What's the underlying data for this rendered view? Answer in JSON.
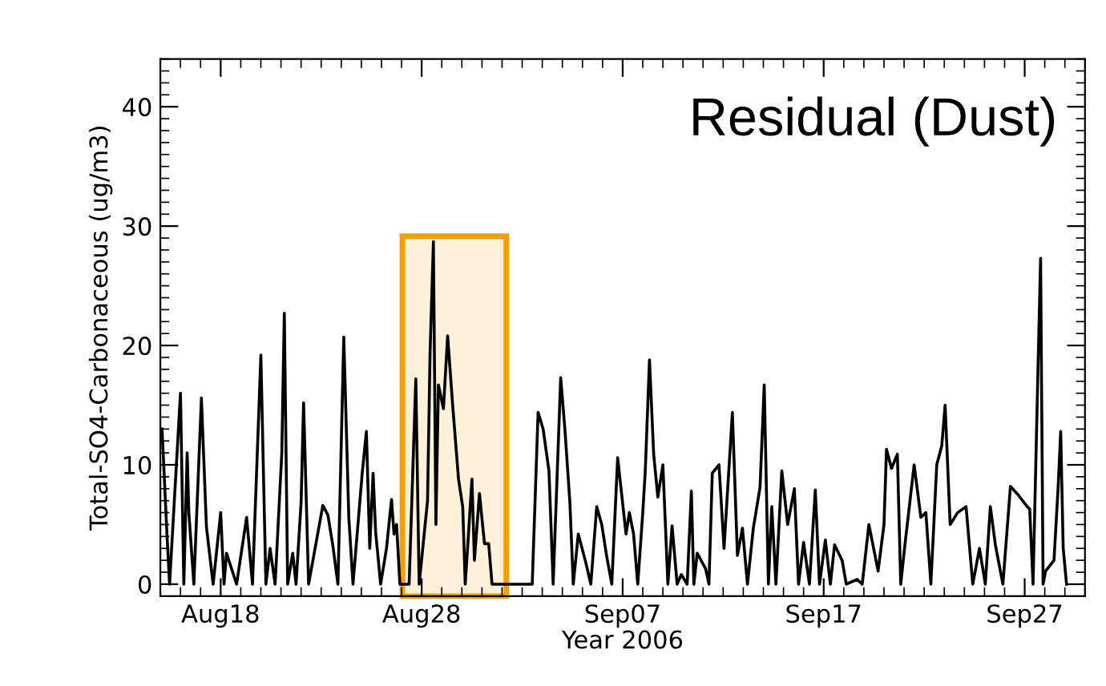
{
  "chart_data": {
    "type": "line",
    "xlabel": "Year 2006",
    "ylabel": "Total-SO4-Carbonaceous (ug/m3)",
    "annotations": [
      "Residual (Dust)"
    ],
    "xlim": [
      "2006-08-15",
      "2006-09-30"
    ],
    "xticks": [
      {
        "value": "2006-08-18",
        "label": "Aug18"
      },
      {
        "value": "2006-08-28",
        "label": "Aug28"
      },
      {
        "value": "2006-09-07",
        "label": "Sep07"
      },
      {
        "value": "2006-09-17",
        "label": "Sep17"
      },
      {
        "value": "2006-09-27",
        "label": "Sep27"
      }
    ],
    "ylim": [
      -1,
      44
    ],
    "yticks": [
      0,
      10,
      20,
      30,
      40
    ],
    "grid": false,
    "legend": false,
    "marker": "none",
    "line_style": "solid",
    "bands": [
      {
        "axis": "x",
        "from": "2006-08-27T01:00",
        "to": "2006-09-01T05:00",
        "color": "#f5a000"
      }
    ],
    "series": [
      {
        "color": "#000000",
        "x": [
          "2006-08-15T02:00",
          "2006-08-15T08:00",
          "2006-08-15T11:00",
          "2006-08-16T00:00",
          "2006-08-16T04:00",
          "2006-08-16T08:00",
          "2006-08-16T10:00",
          "2006-08-16T16:00",
          "2006-08-17T01:00",
          "2006-08-17T07:00",
          "2006-08-17T15:00",
          "2006-08-18T00:00",
          "2006-08-18T04:00",
          "2006-08-18T07:00",
          "2006-08-18T19:00",
          "2006-08-19T07:00",
          "2006-08-19T14:00",
          "2006-08-20T00:00",
          "2006-08-20T06:00",
          "2006-08-20T11:00",
          "2006-08-20T17:00",
          "2006-08-21T01:00",
          "2006-08-21T04:00",
          "2006-08-21T08:00",
          "2006-08-21T14:00",
          "2006-08-21T18:00",
          "2006-08-22T00:00",
          "2006-08-22T03:00",
          "2006-08-22T09:00",
          "2006-08-23T02:00",
          "2006-08-23T08:00",
          "2006-08-23T14:00",
          "2006-08-23T20:00",
          "2006-08-24T03:00",
          "2006-08-24T09:00",
          "2006-08-24T14:00",
          "2006-08-25T01:00",
          "2006-08-25T06:00",
          "2006-08-25T10:00",
          "2006-08-25T14:00",
          "2006-08-25T17:00",
          "2006-08-25T23:00",
          "2006-08-26T06:00",
          "2006-08-26T12:00",
          "2006-08-26T15:00",
          "2006-08-26T18:00",
          "2006-08-26T22:00",
          "2006-08-27T09:00",
          "2006-08-27T17:00",
          "2006-08-27T21:00",
          "2006-08-28T07:00",
          "2006-08-28T10:00",
          "2006-08-28T14:00",
          "2006-08-28T17:00",
          "2006-08-28T20:00",
          "2006-08-29T02:00",
          "2006-08-29T07:00",
          "2006-08-29T13:00",
          "2006-08-29T20:00",
          "2006-08-30T01:00",
          "2006-08-30T04:00",
          "2006-08-30T08:00",
          "2006-08-30T12:00",
          "2006-08-30T15:00",
          "2006-08-30T21:00",
          "2006-08-31T03:00",
          "2006-08-31T08:00",
          "2006-08-31T12:00",
          "2006-09-01T11:00",
          "2006-09-02T12:00",
          "2006-09-02T19:00",
          "2006-09-03T01:00",
          "2006-09-03T08:00",
          "2006-09-03T13:00",
          "2006-09-03T22:00",
          "2006-09-04T03:00",
          "2006-09-04T09:00",
          "2006-09-04T13:00",
          "2006-09-04T19:00",
          "2006-09-05T04:00",
          "2006-09-05T10:00",
          "2006-09-05T17:00",
          "2006-09-05T23:00",
          "2006-09-06T05:00",
          "2006-09-06T11:00",
          "2006-09-06T18:00",
          "2006-09-07T04:00",
          "2006-09-07T08:00",
          "2006-09-07T13:00",
          "2006-09-07T18:00",
          "2006-09-08T00:00",
          "2006-09-08T03:00",
          "2006-09-08T08:00",
          "2006-09-08T13:00",
          "2006-09-08T18:00",
          "2006-09-09T00:00",
          "2006-09-09T06:00",
          "2006-09-09T11:00",
          "2006-09-09T17:00",
          "2006-09-09T22:00",
          "2006-09-10T05:00",
          "2006-09-10T10:00",
          "2006-09-10T13:00",
          "2006-09-10T17:00",
          "2006-09-11T03:00",
          "2006-09-11T07:00",
          "2006-09-11T11:00",
          "2006-09-11T19:00",
          "2006-09-12T01:00",
          "2006-09-12T11:00",
          "2006-09-12T17:00",
          "2006-09-12T23:00",
          "2006-09-13T05:00",
          "2006-09-13T12:00",
          "2006-09-13T20:00",
          "2006-09-14T01:00",
          "2006-09-14T06:00",
          "2006-09-14T10:00",
          "2006-09-14T15:00",
          "2006-09-14T22:00",
          "2006-09-15T05:00",
          "2006-09-15T13:00",
          "2006-09-15T18:00",
          "2006-09-16T00:00",
          "2006-09-16T07:00",
          "2006-09-16T14:00",
          "2006-09-16T19:00",
          "2006-09-17T02:00",
          "2006-09-17T08:00",
          "2006-09-17T13:00",
          "2006-09-17T22:00",
          "2006-09-18T03:00",
          "2006-09-18T16:00",
          "2006-09-18T22:00",
          "2006-09-19T06:00",
          "2006-09-19T17:00",
          "2006-09-20T00:00",
          "2006-09-20T03:00",
          "2006-09-20T09:00",
          "2006-09-20T16:00",
          "2006-09-20T20:00",
          "2006-09-21T01:00",
          "2006-09-21T12:00",
          "2006-09-21T20:00",
          "2006-09-22T02:00",
          "2006-09-22T08:00",
          "2006-09-22T15:00",
          "2006-09-22T21:00",
          "2006-09-23T01:00",
          "2006-09-23T07:00",
          "2006-09-23T16:00",
          "2006-09-24T02:00",
          "2006-09-24T10:00",
          "2006-09-24T18:00",
          "2006-09-25T01:00",
          "2006-09-25T07:00",
          "2006-09-25T13:00",
          "2006-09-25T22:00",
          "2006-09-26T07:00",
          "2006-09-26T16:00",
          "2006-09-27T03:00",
          "2006-09-27T06:00",
          "2006-09-27T10:00",
          "2006-09-27T16:00",
          "2006-09-27T19:00",
          "2006-09-27T22:00",
          "2006-09-28T01:00",
          "2006-09-28T11:00",
          "2006-09-28T16:00",
          "2006-09-28T19:00",
          "2006-09-28T22:00",
          "2006-09-29T02:00"
        ],
        "values": [
          13,
          4,
          0,
          16,
          0,
          11,
          6,
          0,
          15.6,
          4.8,
          0,
          6,
          0,
          2.6,
          0,
          5.6,
          0,
          19.2,
          0,
          3,
          0,
          11,
          22.7,
          0,
          2.6,
          0,
          6.8,
          15.2,
          0,
          6.6,
          5.8,
          3.2,
          0,
          20.7,
          5.6,
          0,
          9.3,
          12.8,
          3,
          9.3,
          4.4,
          0,
          3,
          7.1,
          4.2,
          5,
          0,
          0,
          17.2,
          0,
          7,
          19.3,
          28.7,
          5,
          16.7,
          14.7,
          20.8,
          15,
          8.8,
          6.5,
          0,
          4.3,
          8.8,
          2,
          7.6,
          3.4,
          3.4,
          0,
          0,
          0,
          14.4,
          13,
          9.5,
          0,
          17.3,
          13,
          6.8,
          0,
          4.2,
          1.8,
          0,
          6.5,
          5,
          2.3,
          0,
          10.6,
          4.2,
          6,
          4.2,
          0,
          6,
          9.5,
          18.8,
          10.9,
          7.3,
          10,
          0,
          4.9,
          0,
          0.8,
          0,
          7.8,
          0,
          2.6,
          1.3,
          0,
          9.3,
          10,
          3,
          14.4,
          2.4,
          4.7,
          0,
          4.7,
          8.1,
          16.7,
          0,
          6.5,
          0,
          9.5,
          5,
          8,
          0,
          3.5,
          0,
          7.9,
          0,
          3.7,
          0,
          3.3,
          2,
          0,
          0.4,
          0,
          5,
          1.1,
          5,
          11.3,
          9.7,
          10.9,
          0,
          3.3,
          10,
          5.6,
          6,
          0,
          10,
          11.6,
          15,
          5,
          6,
          6.5,
          0,
          3,
          0,
          6.5,
          3.3,
          0,
          8.2,
          7.5,
          6.5,
          6.3,
          0,
          18.4,
          27.3,
          0,
          1.1,
          2,
          8.2,
          12.8,
          3,
          0
        ]
      }
    ]
  }
}
